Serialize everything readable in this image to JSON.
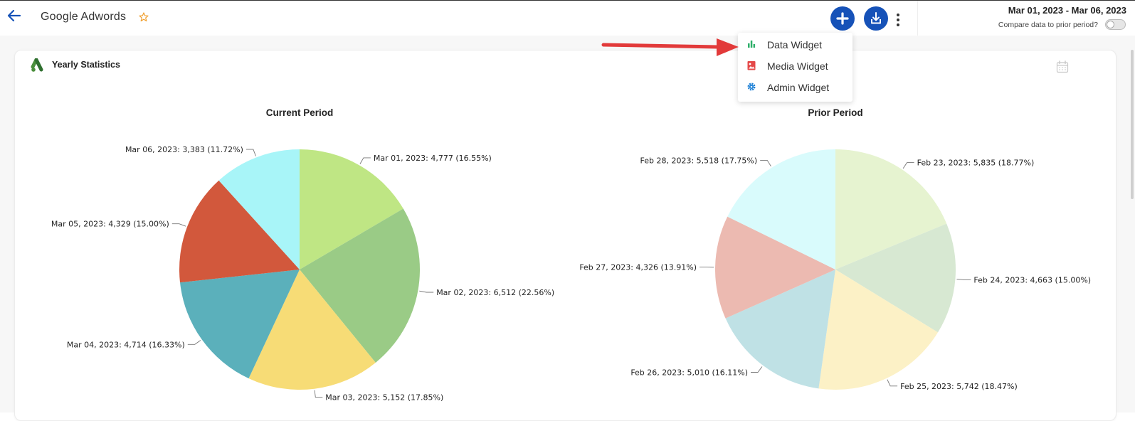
{
  "header": {
    "title": "Google Adwords",
    "date_range": "Mar 01, 2023 - Mar 06, 2023",
    "compare_label": "Compare data to prior period?",
    "compare_enabled": false
  },
  "menu": {
    "items": [
      {
        "label": "Data Widget",
        "icon": "bar-chart-icon",
        "color": "#2eaf6a"
      },
      {
        "label": "Media Widget",
        "icon": "image-icon",
        "color": "#e44848"
      },
      {
        "label": "Admin Widget",
        "icon": "gear-icon",
        "color": "#1b7fd6"
      }
    ]
  },
  "widget": {
    "title": "Yearly Statistics"
  },
  "colors": {
    "primary": "#1652b8",
    "star": "#f0a030",
    "arrow": "#e23a3a"
  },
  "chart_data": [
    {
      "type": "pie",
      "title": "Current Period",
      "labels": [
        "Mar 01, 2023: 4,777 (16.55%)",
        "Mar 02, 2023: 6,512 (22.56%)",
        "Mar 03, 2023: 5,152 (17.85%)",
        "Mar 04, 2023: 4,714 (16.33%)",
        "Mar 05, 2023: 4,329 (15.00%)",
        "Mar 06, 2023: 3,383 (11.72%)"
      ],
      "categories": [
        "Mar 01, 2023",
        "Mar 02, 2023",
        "Mar 03, 2023",
        "Mar 04, 2023",
        "Mar 05, 2023",
        "Mar 06, 2023"
      ],
      "values": [
        4777,
        6512,
        5152,
        4714,
        4329,
        3383
      ],
      "percentages": [
        16.55,
        22.56,
        17.85,
        16.33,
        15.0,
        11.72
      ],
      "colors": [
        "#bfe684",
        "#9acb86",
        "#f7dc76",
        "#5bb0bb",
        "#d2583c",
        "#a8f5f8"
      ]
    },
    {
      "type": "pie",
      "title": "Prior Period",
      "labels": [
        "Feb 23, 2023: 5,835 (18.77%)",
        "Feb 24, 2023: 4,663 (15.00%)",
        "Feb 25, 2023: 5,742 (18.47%)",
        "Feb 26, 2023: 5,010 (16.11%)",
        "Feb 27, 2023: 4,326 (13.91%)",
        "Feb 28, 2023: 5,518 (17.75%)"
      ],
      "categories": [
        "Feb 23, 2023",
        "Feb 24, 2023",
        "Feb 25, 2023",
        "Feb 26, 2023",
        "Feb 27, 2023",
        "Feb 28, 2023"
      ],
      "values": [
        5835,
        4663,
        5742,
        5010,
        4326,
        5518
      ],
      "percentages": [
        18.77,
        15.0,
        18.47,
        16.11,
        13.91,
        17.75
      ],
      "colors": [
        "#e6f3d0",
        "#d7e8d2",
        "#fcf1c6",
        "#bfe1e5",
        "#ecbab1",
        "#d9fbfc"
      ]
    }
  ]
}
